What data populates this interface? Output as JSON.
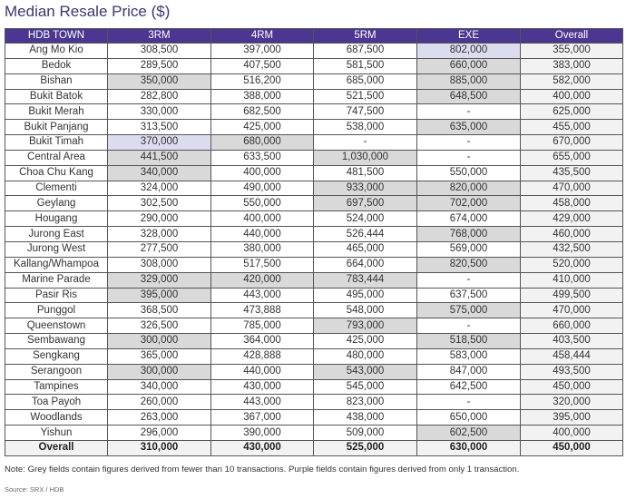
{
  "title": "Median Resale Price ($)",
  "columns": [
    "HDB TOWN",
    "3RM",
    "4RM",
    "5RM",
    "EXE",
    "Overall"
  ],
  "rows": [
    {
      "town": "Ang Mo Kio",
      "values": [
        "308,500",
        "397,000",
        "687,500",
        "802,000",
        "355,000"
      ],
      "flags": [
        "",
        "",
        "",
        "p"
      ]
    },
    {
      "town": "Bedok",
      "values": [
        "289,500",
        "407,500",
        "581,500",
        "660,000",
        "383,000"
      ],
      "flags": [
        "",
        "",
        "",
        "g"
      ]
    },
    {
      "town": "Bishan",
      "values": [
        "350,000",
        "516,200",
        "685,000",
        "885,000",
        "582,000"
      ],
      "flags": [
        "g",
        "",
        "",
        "g"
      ]
    },
    {
      "town": "Bukit Batok",
      "values": [
        "282,800",
        "388,000",
        "521,500",
        "648,500",
        "400,000"
      ],
      "flags": [
        "",
        "",
        "",
        "g"
      ]
    },
    {
      "town": "Bukit Merah",
      "values": [
        "330,000",
        "682,500",
        "747,500",
        "-",
        "625,000"
      ],
      "flags": [
        "",
        "",
        "",
        ""
      ]
    },
    {
      "town": "Bukit Panjang",
      "values": [
        "313,500",
        "425,000",
        "538,000",
        "635,000",
        "455,000"
      ],
      "flags": [
        "",
        "",
        "",
        "g"
      ]
    },
    {
      "town": "Bukit Timah",
      "values": [
        "370,000",
        "680,000",
        "-",
        "-",
        "670,000"
      ],
      "flags": [
        "p",
        "g",
        "",
        ""
      ]
    },
    {
      "town": "Central Area",
      "values": [
        "441,500",
        "633,500",
        "1,030,000",
        "-",
        "655,000"
      ],
      "flags": [
        "g",
        "",
        "g",
        ""
      ]
    },
    {
      "town": "Choa Chu Kang",
      "values": [
        "340,000",
        "400,000",
        "481,500",
        "550,000",
        "435,500"
      ],
      "flags": [
        "g",
        "",
        "",
        ""
      ]
    },
    {
      "town": "Clementi",
      "values": [
        "324,000",
        "490,000",
        "933,000",
        "820,000",
        "470,000"
      ],
      "flags": [
        "",
        "",
        "g",
        "g"
      ]
    },
    {
      "town": "Geylang",
      "values": [
        "302,500",
        "550,000",
        "697,500",
        "702,000",
        "458,000"
      ],
      "flags": [
        "",
        "",
        "g",
        "g"
      ]
    },
    {
      "town": "Hougang",
      "values": [
        "290,000",
        "400,000",
        "524,000",
        "674,000",
        "429,000"
      ],
      "flags": [
        "",
        "",
        "",
        ""
      ]
    },
    {
      "town": "Jurong East",
      "values": [
        "328,000",
        "440,000",
        "526,444",
        "768,000",
        "460,000"
      ],
      "flags": [
        "",
        "",
        "",
        "g"
      ]
    },
    {
      "town": "Jurong West",
      "values": [
        "277,500",
        "380,000",
        "465,000",
        "569,000",
        "432,500"
      ],
      "flags": [
        "",
        "",
        "",
        ""
      ]
    },
    {
      "town": "Kallang/Whampoa",
      "values": [
        "308,000",
        "517,500",
        "664,000",
        "820,500",
        "520,000"
      ],
      "flags": [
        "",
        "",
        "",
        "g"
      ]
    },
    {
      "town": "Marine Parade",
      "values": [
        "329,000",
        "420,000",
        "783,444",
        "-",
        "410,000"
      ],
      "flags": [
        "g",
        "g",
        "g",
        ""
      ]
    },
    {
      "town": "Pasir Ris",
      "values": [
        "395,000",
        "443,000",
        "495,000",
        "637,500",
        "499,500"
      ],
      "flags": [
        "g",
        "",
        "",
        ""
      ]
    },
    {
      "town": "Punggol",
      "values": [
        "368,500",
        "473,888",
        "548,000",
        "575,000",
        "470,000"
      ],
      "flags": [
        "",
        "",
        "",
        "g"
      ]
    },
    {
      "town": "Queenstown",
      "values": [
        "326,500",
        "785,000",
        "793,000",
        "-",
        "660,000"
      ],
      "flags": [
        "",
        "",
        "g",
        ""
      ]
    },
    {
      "town": "Sembawang",
      "values": [
        "300,000",
        "364,000",
        "425,000",
        "518,500",
        "403,500"
      ],
      "flags": [
        "g",
        "",
        "",
        "g"
      ]
    },
    {
      "town": "Sengkang",
      "values": [
        "365,000",
        "428,888",
        "480,000",
        "583,000",
        "458,444"
      ],
      "flags": [
        "",
        "",
        "",
        ""
      ]
    },
    {
      "town": "Serangoon",
      "values": [
        "300,000",
        "440,000",
        "543,000",
        "847,000",
        "493,500"
      ],
      "flags": [
        "g",
        "",
        "g",
        ""
      ]
    },
    {
      "town": "Tampines",
      "values": [
        "340,000",
        "430,000",
        "545,000",
        "642,500",
        "450,000"
      ],
      "flags": [
        "",
        "",
        "",
        ""
      ]
    },
    {
      "town": "Toa Payoh",
      "values": [
        "260,000",
        "443,000",
        "823,000",
        "-",
        "320,000"
      ],
      "flags": [
        "",
        "",
        "",
        ""
      ]
    },
    {
      "town": "Woodlands",
      "values": [
        "263,000",
        "367,000",
        "438,000",
        "650,000",
        "395,000"
      ],
      "flags": [
        "",
        "",
        "",
        ""
      ]
    },
    {
      "town": "Yishun",
      "values": [
        "296,000",
        "390,000",
        "509,000",
        "602,500",
        "400,000"
      ],
      "flags": [
        "",
        "",
        "",
        "g"
      ]
    }
  ],
  "total": {
    "town": "Overall",
    "values": [
      "310,000",
      "430,000",
      "525,000",
      "630,000",
      "450,000"
    ]
  },
  "note": "Note: Grey fields contain figures derived from fewer than 10 transactions. Purple fields contain figures derived from only 1 transaction.",
  "source": "Source: SRX / HDB",
  "colors": {
    "header": "#4b3691",
    "grey": "#d9d9d9",
    "purple": "#dcdcef",
    "overall": "#f2f2f2"
  }
}
